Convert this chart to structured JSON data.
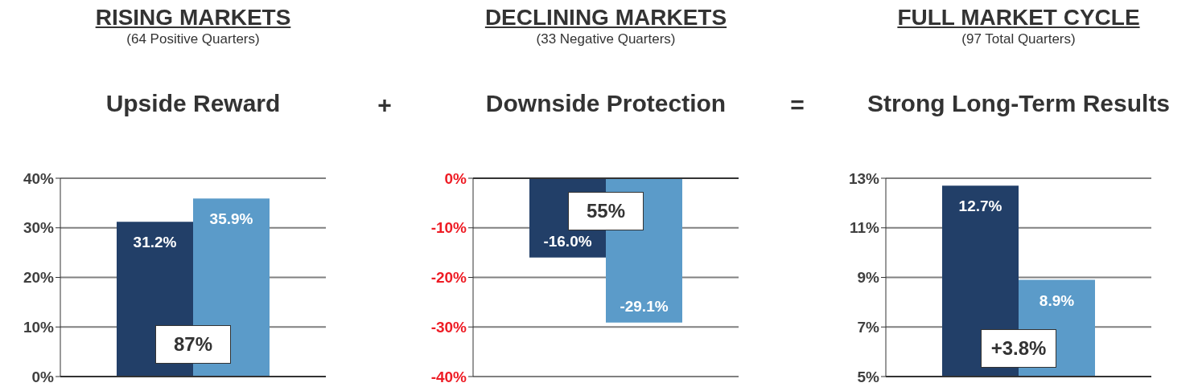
{
  "chart_data": [
    {
      "type": "bar",
      "title": "RISING MARKETS",
      "subtitle": "(64 Positive Quarters)",
      "annotations": [
        "Upside Reward",
        "87%",
        "+"
      ],
      "categories": [
        null,
        null
      ],
      "values": [
        31.2,
        35.9
      ],
      "colors": [
        "#223f68",
        "#5b9bc9"
      ],
      "value_labels": [
        "31.2%",
        "35.9%"
      ],
      "ylim": [
        0,
        40
      ],
      "yticks": [
        {
          "value": 0,
          "label": "0%"
        },
        {
          "value": 10,
          "label": "10%"
        },
        {
          "value": 20,
          "label": "20%"
        },
        {
          "value": 30,
          "label": "30%"
        },
        {
          "value": 40,
          "label": "40%"
        }
      ],
      "grid": "y",
      "legend": false
    },
    {
      "type": "bar",
      "title": "DECLINING MARKETS",
      "subtitle": "(33 Negative Quarters)",
      "annotations": [
        "Downside Protection",
        "55%",
        "="
      ],
      "categories": [
        null,
        null
      ],
      "values": [
        -16.0,
        -29.1
      ],
      "colors": [
        "#223f68",
        "#5b9bc9"
      ],
      "value_labels": [
        "-16.0%",
        "-29.1%"
      ],
      "ylim": [
        -40,
        0
      ],
      "yticks": [
        {
          "value": -40,
          "label": "-40%"
        },
        {
          "value": -30,
          "label": "-30%"
        },
        {
          "value": -20,
          "label": "-20%"
        },
        {
          "value": -10,
          "label": "-10%"
        },
        {
          "value": 0,
          "label": "0%"
        }
      ],
      "grid": "y",
      "legend": false
    },
    {
      "type": "bar",
      "title": "FULL MARKET CYCLE",
      "subtitle": "(97 Total Quarters)",
      "annotations": [
        "Strong Long-Term Results",
        "+3.8%"
      ],
      "categories": [
        null,
        null
      ],
      "values": [
        12.7,
        8.9
      ],
      "colors": [
        "#223f68",
        "#5b9bc9"
      ],
      "value_labels": [
        "12.7%",
        "8.9%"
      ],
      "ylim": [
        5,
        13
      ],
      "yticks": [
        {
          "value": 5,
          "label": "5%"
        },
        {
          "value": 7,
          "label": "7%"
        },
        {
          "value": 9,
          "label": "9%"
        },
        {
          "value": 11,
          "label": "11%"
        },
        {
          "value": 13,
          "label": "13%"
        }
      ],
      "grid": "y",
      "legend": false
    }
  ]
}
